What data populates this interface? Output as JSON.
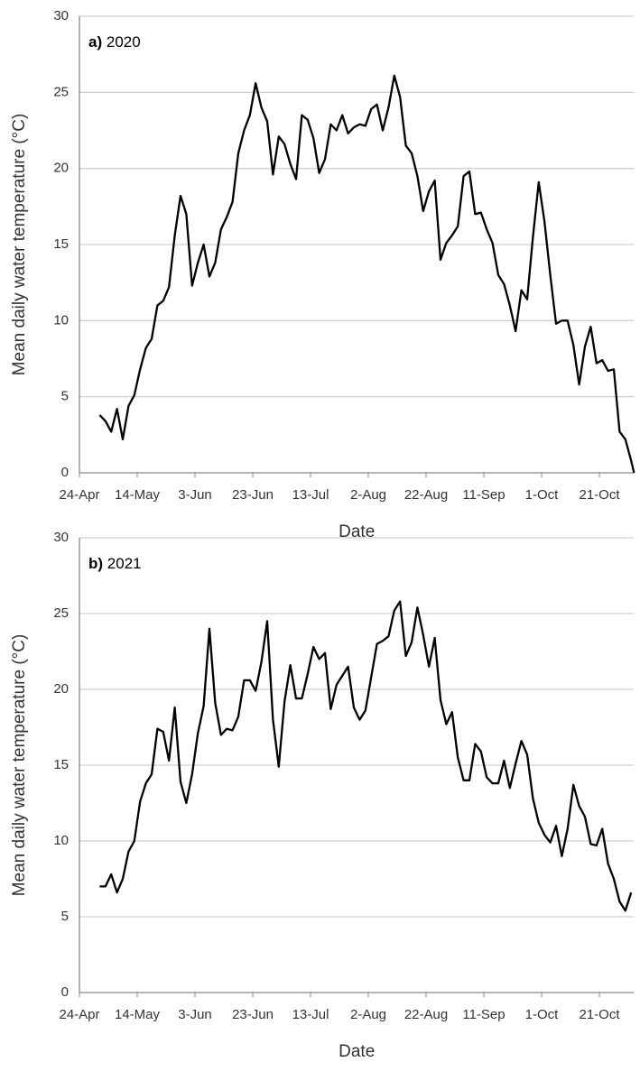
{
  "chart_data": [
    {
      "type": "line",
      "panel_label": "a)",
      "title": "2020",
      "x_label": "Date",
      "y_label": "Mean daily water temperature (°C)",
      "xlim": [
        0,
        192
      ],
      "ylim": [
        0,
        30
      ],
      "xticks": [
        {
          "value": 0,
          "label": "24-Apr"
        },
        {
          "value": 20,
          "label": "14-May"
        },
        {
          "value": 40,
          "label": "3-Jun"
        },
        {
          "value": 60,
          "label": "23-Jun"
        },
        {
          "value": 80,
          "label": "13-Jul"
        },
        {
          "value": 100,
          "label": "2-Aug"
        },
        {
          "value": 120,
          "label": "22-Aug"
        },
        {
          "value": 140,
          "label": "11-Sep"
        },
        {
          "value": 160,
          "label": "1-Oct"
        },
        {
          "value": 180,
          "label": "21-Oct"
        }
      ],
      "yticks": [
        0,
        5,
        10,
        15,
        20,
        25,
        30
      ],
      "grid": true,
      "series": [
        {
          "color": "#000000",
          "x": [
            7,
            9,
            11,
            13,
            15,
            17,
            19,
            21,
            23,
            25,
            27,
            29,
            31,
            33,
            35,
            37,
            39,
            41,
            43,
            45,
            47,
            49,
            51,
            53,
            55,
            57,
            59,
            61,
            63,
            65,
            67,
            69,
            71,
            73,
            75,
            77,
            79,
            81,
            83,
            85,
            87,
            89,
            91,
            93,
            95,
            97,
            99,
            101,
            103,
            105,
            107,
            109,
            111,
            113,
            115,
            117,
            119,
            121,
            123,
            125,
            127,
            129,
            131,
            133,
            135,
            137,
            139,
            141,
            143,
            145,
            147,
            149,
            151,
            153,
            155,
            157,
            159,
            161,
            163,
            165,
            167,
            169,
            171,
            173,
            175,
            177,
            179,
            181,
            183,
            185,
            187,
            189,
            191,
            192
          ],
          "values": [
            3.8,
            3.4,
            2.7,
            4.2,
            2.2,
            4.4,
            5.1,
            6.8,
            8.2,
            8.8,
            11.0,
            11.3,
            12.2,
            15.6,
            18.2,
            17.0,
            12.3,
            13.8,
            15.0,
            12.9,
            13.8,
            16.0,
            16.8,
            17.8,
            21.0,
            22.5,
            23.5,
            25.6,
            24.0,
            23.1,
            19.6,
            22.1,
            21.6,
            20.3,
            19.3,
            23.5,
            23.2,
            22.0,
            19.7,
            20.6,
            22.9,
            22.5,
            23.5,
            22.3,
            22.7,
            22.9,
            22.8,
            23.9,
            24.2,
            22.5,
            24.0,
            26.1,
            24.7,
            21.5,
            21.0,
            19.5,
            17.2,
            18.5,
            19.2,
            14.0,
            15.1,
            15.6,
            16.2,
            19.5,
            19.8,
            17.0,
            17.1,
            16.0,
            15.1,
            13.0,
            12.4,
            11.0,
            9.3,
            12.0,
            11.4,
            15.5,
            19.1,
            16.5,
            13.0,
            9.8,
            10.0,
            10.0,
            8.4,
            5.8,
            8.3,
            9.6,
            7.2,
            7.4,
            6.7,
            6.8,
            2.7,
            2.2,
            0.8,
            0
          ]
        }
      ]
    },
    {
      "type": "line",
      "panel_label": "b)",
      "title": "2021",
      "x_label": "Date",
      "y_label": "Mean daily water temperature (°C)",
      "xlim": [
        0,
        192
      ],
      "ylim": [
        0,
        30
      ],
      "xticks": [
        {
          "value": 0,
          "label": "24-Apr"
        },
        {
          "value": 20,
          "label": "14-May"
        },
        {
          "value": 40,
          "label": "3-Jun"
        },
        {
          "value": 60,
          "label": "23-Jun"
        },
        {
          "value": 80,
          "label": "13-Jul"
        },
        {
          "value": 100,
          "label": "2-Aug"
        },
        {
          "value": 120,
          "label": "22-Aug"
        },
        {
          "value": 140,
          "label": "11-Sep"
        },
        {
          "value": 160,
          "label": "1-Oct"
        },
        {
          "value": 180,
          "label": "21-Oct"
        }
      ],
      "yticks": [
        0,
        5,
        10,
        15,
        20,
        25,
        30
      ],
      "grid": true,
      "series": [
        {
          "color": "#000000",
          "x": [
            7,
            9,
            11,
            13,
            15,
            17,
            19,
            21,
            23,
            25,
            27,
            29,
            31,
            33,
            35,
            37,
            39,
            41,
            43,
            45,
            47,
            49,
            51,
            53,
            55,
            57,
            59,
            61,
            63,
            65,
            67,
            69,
            71,
            73,
            75,
            77,
            79,
            81,
            83,
            85,
            87,
            89,
            91,
            93,
            95,
            97,
            99,
            101,
            103,
            105,
            107,
            109,
            111,
            113,
            115,
            117,
            119,
            121,
            123,
            125,
            127,
            129,
            131,
            133,
            135,
            137,
            139,
            141,
            143,
            145,
            147,
            149,
            151,
            153,
            155,
            157,
            159,
            161,
            163,
            165,
            167,
            169,
            171,
            173,
            175,
            177,
            179,
            181,
            183,
            185,
            187,
            189,
            191
          ],
          "values": [
            7.0,
            7.0,
            7.8,
            6.6,
            7.5,
            9.3,
            10.0,
            12.6,
            13.8,
            14.4,
            17.4,
            17.2,
            15.3,
            18.8,
            13.9,
            12.5,
            14.4,
            17.1,
            18.9,
            24.0,
            19.1,
            17.0,
            17.4,
            17.3,
            18.2,
            20.6,
            20.6,
            19.9,
            21.8,
            24.5,
            18.0,
            14.9,
            19.2,
            21.6,
            19.4,
            19.4,
            21.0,
            22.8,
            22.0,
            22.4,
            18.7,
            20.3,
            20.9,
            21.5,
            18.8,
            18.0,
            18.6,
            20.8,
            23.0,
            23.2,
            23.5,
            25.2,
            25.8,
            22.2,
            23.1,
            25.4,
            23.6,
            21.5,
            23.4,
            19.3,
            17.7,
            18.5,
            15.5,
            14.0,
            14.0,
            16.4,
            15.9,
            14.2,
            13.8,
            13.8,
            15.3,
            13.5,
            15.1,
            16.6,
            15.7,
            12.8,
            11.2,
            10.4,
            9.9,
            11.0,
            9.0,
            10.8,
            13.7,
            12.3,
            11.6,
            9.8,
            9.7,
            10.8,
            8.5,
            7.5,
            6.0,
            5.4,
            6.6
          ]
        }
      ]
    }
  ]
}
